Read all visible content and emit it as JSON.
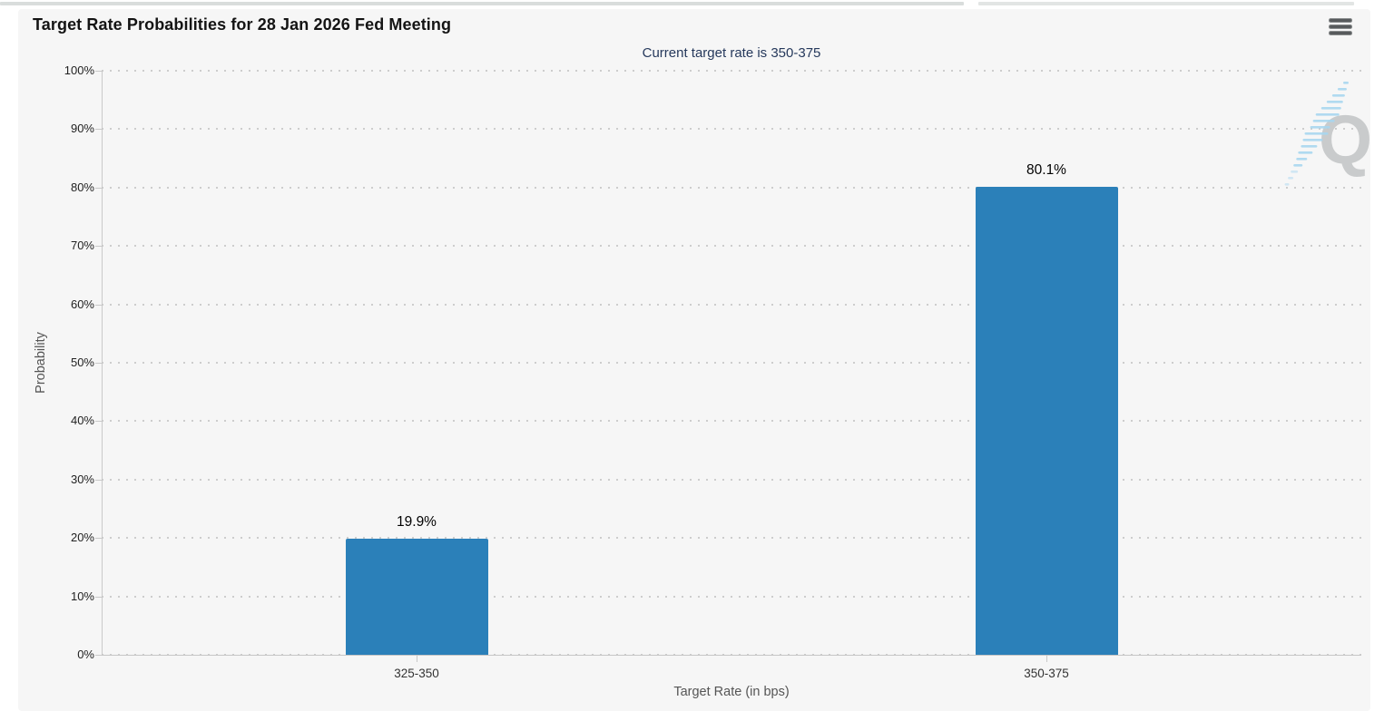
{
  "header": {
    "menu_icon": "hamburger-menu-icon"
  },
  "chart_data": {
    "type": "bar",
    "title": "Target Rate Probabilities for 28 Jan 2026 Fed Meeting",
    "subtitle": "Current target rate is 350-375",
    "categories": [
      "325-350",
      "350-375"
    ],
    "values": [
      19.9,
      80.1
    ],
    "value_labels": [
      "19.9%",
      "80.1%"
    ],
    "xlabel": "Target Rate (in bps)",
    "ylabel": "Probability",
    "ylim": [
      0,
      100
    ],
    "ytick_step": 10,
    "ytick_labels": [
      "0%",
      "10%",
      "20%",
      "30%",
      "40%",
      "50%",
      "60%",
      "70%",
      "80%",
      "90%",
      "100%"
    ],
    "grid": "dotted-horizontal",
    "legend": "none",
    "bar_color": "#2b80b9",
    "watermark_letter": "Q"
  }
}
